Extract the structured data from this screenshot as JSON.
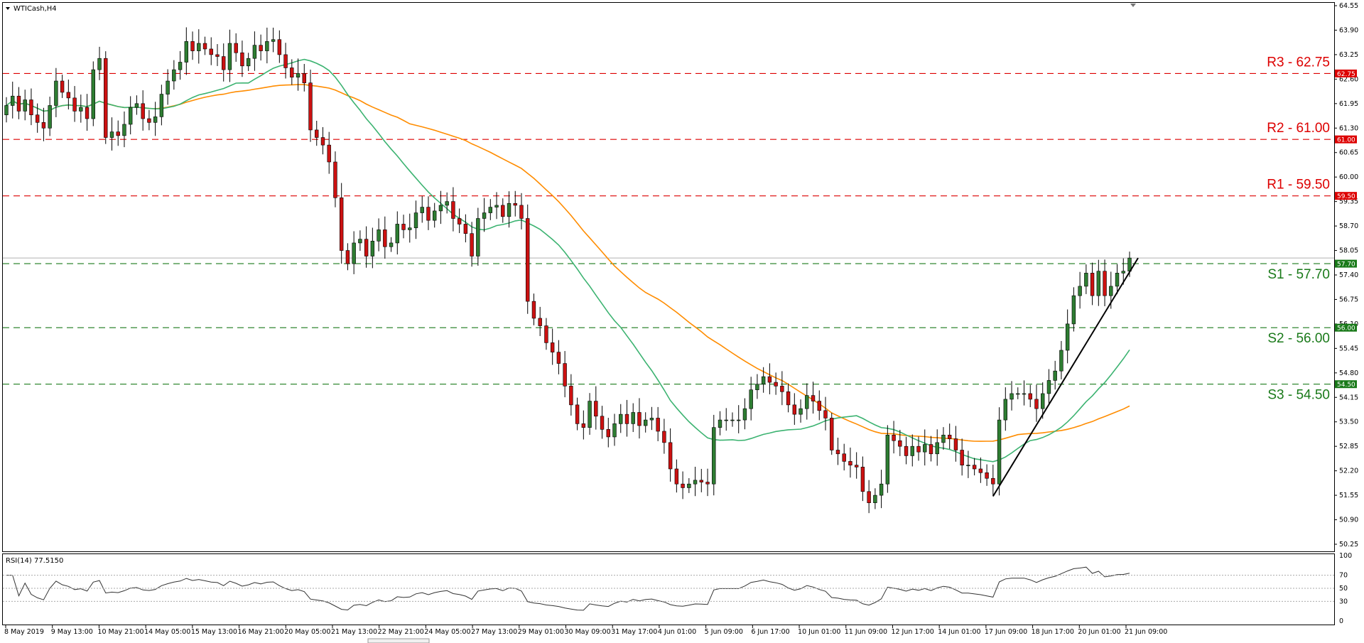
{
  "symbol_title": "WTICash,H4",
  "indicator_title": "RSI(14) 77.5150",
  "colors": {
    "bull": "#2e7d32",
    "bear": "#cc1111",
    "wick": "#000000",
    "ma_fast": "#3cb371",
    "ma_slow": "#ff8c00",
    "resistance": "#dd0000",
    "support": "#1a7a1a",
    "trendline": "#000000"
  },
  "chart_data": [
    {
      "type": "candlestick",
      "title": "WTICash,H4",
      "ylim": [
        50.25,
        64.55
      ],
      "y_ticks": [
        "64.55",
        "63.90",
        "63.25",
        "62.60",
        "61.95",
        "61.30",
        "60.65",
        "60.00",
        "59.35",
        "58.70",
        "58.05",
        "57.40",
        "56.75",
        "56.10",
        "55.45",
        "54.80",
        "54.15",
        "53.50",
        "52.85",
        "52.20",
        "51.55",
        "50.90",
        "50.25"
      ],
      "x_tick_labels": [
        "8 May 2019",
        "9 May 13:00",
        "10 May 21:00",
        "14 May 05:00",
        "15 May 13:00",
        "16 May 21:00",
        "20 May 05:00",
        "21 May 13:00",
        "22 May 21:00",
        "24 May 05:00",
        "27 May 13:00",
        "29 May 01:00",
        "30 May 09:00",
        "31 May 17:00",
        "4 Jun 01:00",
        "5 Jun 09:00",
        "6 Jun 17:00",
        "10 Jun 01:00",
        "11 Jun 09:00",
        "12 Jun 17:00",
        "14 Jun 01:00",
        "17 Jun 09:00",
        "18 Jun 17:00",
        "20 Jun 01:00",
        "21 Jun 09:00"
      ],
      "resistance_levels": [
        {
          "label": "R3 - 62.75",
          "value": 62.75,
          "tag": "62.75"
        },
        {
          "label": "R2 - 61.00",
          "value": 61.0,
          "tag": "61.00"
        },
        {
          "label": "R1  - 59.50",
          "value": 59.5,
          "tag": "59.50"
        }
      ],
      "support_levels": [
        {
          "label": "S1 - 57.70",
          "value": 57.7,
          "tag": "57.70"
        },
        {
          "label": "S2 - 56.00",
          "value": 56.0,
          "tag": "56.00"
        },
        {
          "label": "S3 - 54.50",
          "value": 54.5,
          "tag": "54.50"
        }
      ],
      "closes": [
        61.9,
        62.15,
        61.75,
        62.05,
        61.65,
        61.45,
        61.3,
        61.9,
        62.55,
        62.25,
        62.1,
        61.75,
        61.85,
        61.55,
        62.85,
        63.15,
        61.05,
        61.2,
        61.1,
        61.4,
        61.85,
        61.95,
        61.55,
        61.45,
        61.6,
        62.2,
        62.55,
        62.85,
        63.05,
        63.6,
        63.35,
        63.55,
        63.4,
        63.25,
        63.2,
        62.85,
        63.55,
        63.3,
        62.95,
        63.15,
        63.5,
        63.35,
        63.6,
        63.65,
        63.25,
        62.9,
        62.65,
        62.75,
        62.5,
        61.25,
        61.05,
        60.85,
        60.4,
        59.45,
        58.05,
        57.7,
        58.25,
        58.35,
        57.9,
        58.3,
        58.6,
        58.15,
        58.25,
        58.75,
        58.6,
        58.65,
        59.05,
        59.2,
        58.85,
        59.1,
        59.25,
        59.35,
        58.9,
        58.75,
        58.5,
        57.9,
        58.9,
        59.05,
        59.2,
        59.25,
        58.95,
        59.3,
        59.25,
        58.9,
        56.7,
        56.25,
        56.05,
        55.6,
        55.35,
        55.05,
        54.45,
        53.95,
        53.45,
        53.35,
        54.05,
        53.65,
        53.3,
        53.1,
        53.45,
        53.7,
        53.45,
        53.75,
        53.4,
        53.55,
        53.6,
        53.25,
        52.95,
        52.25,
        51.85,
        51.75,
        51.85,
        51.95,
        51.9,
        51.85,
        53.35,
        53.55,
        53.55,
        53.55,
        53.55,
        53.85,
        54.35,
        54.5,
        54.7,
        54.55,
        54.45,
        54.3,
        53.95,
        53.7,
        53.85,
        54.2,
        54.05,
        53.8,
        53.6,
        52.75,
        52.65,
        52.45,
        52.35,
        52.3,
        51.65,
        51.35,
        51.55,
        51.85,
        53.15,
        53.0,
        52.85,
        52.6,
        52.85,
        52.7,
        52.9,
        52.65,
        52.95,
        53.15,
        53.05,
        52.75,
        52.35,
        52.35,
        52.25,
        52.15,
        52.0,
        51.85,
        53.55,
        54.1,
        54.25,
        54.25,
        54.25,
        54.1,
        53.85,
        54.25,
        54.6,
        54.85,
        55.4,
        56.1,
        56.85,
        57.1,
        57.45,
        56.85,
        57.5,
        56.85,
        57.1,
        57.45,
        57.5,
        57.85
      ]
    },
    {
      "type": "line",
      "title": "RSI(14) 77.5150",
      "ylim": [
        0,
        100
      ],
      "y_ticks": [
        100,
        70,
        50,
        30,
        0
      ],
      "levels": [
        70,
        50,
        30
      ]
    }
  ]
}
